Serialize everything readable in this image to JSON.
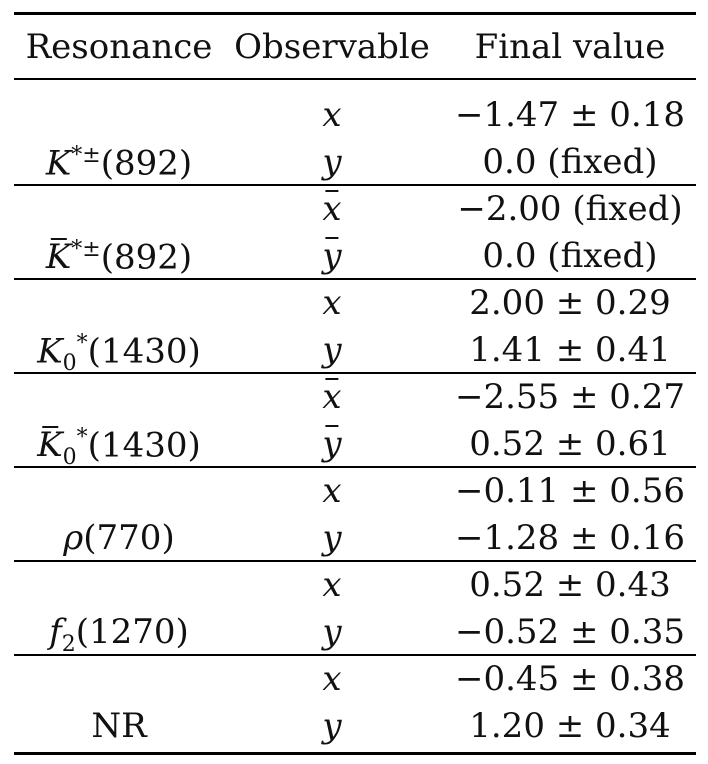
{
  "table": {
    "headers": [
      "Resonance",
      "Observable",
      "Final value"
    ],
    "groups": [
      {
        "resonance": {
          "base": "K",
          "bar": false,
          "sup": "*±",
          "sub": "",
          "mass": "(892)"
        },
        "rows": [
          {
            "observable": "x",
            "bar": false,
            "value": "−1.47 ± 0.18"
          },
          {
            "observable": "y",
            "bar": false,
            "value": "0.0 (fixed)"
          }
        ]
      },
      {
        "resonance": {
          "base": "K",
          "bar": true,
          "sup": "*±",
          "sub": "",
          "mass": "(892)"
        },
        "rows": [
          {
            "observable": "x",
            "bar": true,
            "value": "−2.00 (fixed)"
          },
          {
            "observable": "y",
            "bar": true,
            "value": "0.0 (fixed)"
          }
        ]
      },
      {
        "resonance": {
          "base": "K",
          "bar": false,
          "sup": "*",
          "sub": "0",
          "mass": "(1430)"
        },
        "rows": [
          {
            "observable": "x",
            "bar": false,
            "value": "2.00 ± 0.29"
          },
          {
            "observable": "y",
            "bar": false,
            "value": "1.41 ± 0.41"
          }
        ]
      },
      {
        "resonance": {
          "base": "K",
          "bar": true,
          "sup": "*",
          "sub": "0",
          "mass": "(1430)"
        },
        "rows": [
          {
            "observable": "x",
            "bar": true,
            "value": "−2.55 ± 0.27"
          },
          {
            "observable": "y",
            "bar": true,
            "value": "0.52 ± 0.61"
          }
        ]
      },
      {
        "resonance": {
          "base": "ρ",
          "bar": false,
          "sup": "",
          "sub": "",
          "mass": "(770)"
        },
        "rows": [
          {
            "observable": "x",
            "bar": false,
            "value": "−0.11 ± 0.56"
          },
          {
            "observable": "y",
            "bar": false,
            "value": "−1.28 ± 0.16"
          }
        ]
      },
      {
        "resonance": {
          "base": "f",
          "bar": false,
          "sup": "",
          "sub": "2",
          "mass": "(1270)"
        },
        "rows": [
          {
            "observable": "x",
            "bar": false,
            "value": "0.52 ± 0.43"
          },
          {
            "observable": "y",
            "bar": false,
            "value": "−0.52 ± 0.35"
          }
        ]
      },
      {
        "resonance": {
          "base": "NR",
          "bar": false,
          "sup": "",
          "sub": "",
          "mass": "",
          "upright": true
        },
        "rows": [
          {
            "observable": "x",
            "bar": false,
            "value": "−0.45 ± 0.38"
          },
          {
            "observable": "y",
            "bar": false,
            "value": "1.20 ± 0.34"
          }
        ]
      }
    ]
  }
}
